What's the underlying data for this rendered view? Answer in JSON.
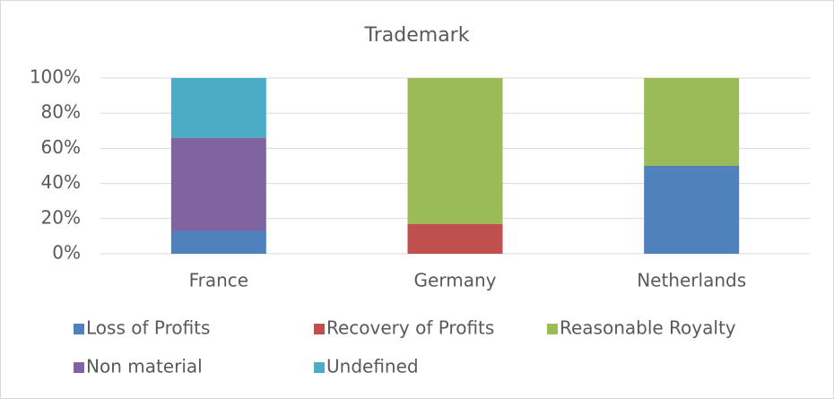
{
  "chart_data": {
    "type": "stacked_bar",
    "title": "Trademark",
    "categories": [
      "France",
      "Germany",
      "Netherlands"
    ],
    "series": [
      {
        "name": "Loss of Profits",
        "color": "#4f81bd",
        "values": [
          13,
          0,
          50
        ]
      },
      {
        "name": "Recovery of Profits",
        "color": "#c0504d",
        "values": [
          0,
          17,
          0
        ]
      },
      {
        "name": "Reasonable Royalty",
        "color": "#9bbb59",
        "values": [
          0,
          83,
          50
        ]
      },
      {
        "name": "Non material",
        "color": "#8064a2",
        "values": [
          53,
          0,
          0
        ]
      },
      {
        "name": "Undefined",
        "color": "#4bacc6",
        "values": [
          34,
          0,
          0
        ]
      }
    ],
    "ylim": [
      0,
      100
    ],
    "yticks": [
      {
        "value": 0,
        "label": "0%"
      },
      {
        "value": 20,
        "label": "20%"
      },
      {
        "value": 40,
        "label": "40%"
      },
      {
        "value": 60,
        "label": "60%"
      },
      {
        "value": 80,
        "label": "80%"
      },
      {
        "value": 100,
        "label": "100%"
      }
    ],
    "grid": true,
    "legend": "bottom"
  }
}
